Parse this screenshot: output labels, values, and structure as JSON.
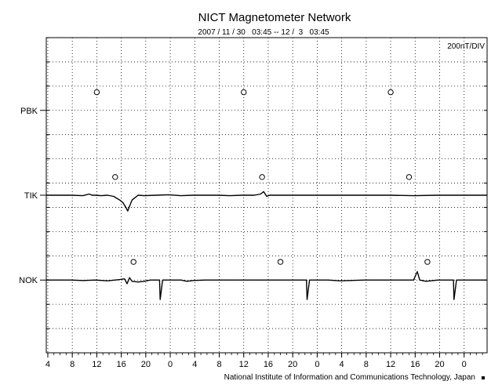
{
  "chart_data": {
    "type": "line",
    "title": "NICT Magnetometer Network",
    "subtitle": "2007 / 11 / 30   03:45 -- 12 /  3   03:45",
    "scale_label": "200nT/DIV",
    "footer": "National Institute of Information and Communications Technology, Japan",
    "grid": true,
    "x_tick_labels": [
      "4",
      "8",
      "12",
      "16",
      "20",
      "0",
      "4",
      "8",
      "12",
      "16",
      "20",
      "0",
      "4",
      "8",
      "12",
      "16",
      "20",
      "0"
    ],
    "x_range_hours": [
      0,
      72
    ],
    "first_tick_offset_hours": 0.25,
    "y_range": [
      0,
      13
    ],
    "stations": [
      {
        "name": "PBK",
        "level": 10.0,
        "marker_hours": [
          8.25,
          32.25,
          56.25
        ],
        "marker_level": 10.75
      },
      {
        "name": "TIK",
        "level": 6.5,
        "marker_hours": [
          11.25,
          35.25,
          59.25
        ],
        "marker_level": 7.25
      },
      {
        "name": "NOK",
        "level": 3.0,
        "marker_hours": [
          14.25,
          38.25,
          62.25
        ],
        "marker_level": 3.75
      }
    ],
    "series": [
      {
        "station": "TIK",
        "x": [
          0,
          2,
          4,
          6,
          7,
          7.5,
          8,
          9,
          10,
          11,
          12,
          12.5,
          13,
          13.3,
          13.6,
          14,
          14.5,
          15,
          16,
          18,
          20,
          22,
          24,
          26,
          28,
          30,
          32,
          34,
          35,
          35.5,
          36,
          36.5,
          37,
          40,
          44,
          48,
          52,
          56,
          60,
          64,
          68,
          72
        ],
        "y": [
          6.5,
          6.5,
          6.5,
          6.48,
          6.55,
          6.5,
          6.5,
          6.48,
          6.5,
          6.45,
          6.3,
          6.2,
          6.0,
          5.85,
          6.05,
          6.3,
          6.4,
          6.5,
          6.48,
          6.5,
          6.52,
          6.48,
          6.5,
          6.5,
          6.5,
          6.48,
          6.5,
          6.5,
          6.55,
          6.65,
          6.45,
          6.5,
          6.5,
          6.5,
          6.5,
          6.5,
          6.5,
          6.5,
          6.48,
          6.5,
          6.5,
          6.5
        ]
      },
      {
        "station": "NOK",
        "x": [
          0,
          2,
          4,
          6,
          8,
          10,
          12,
          12.8,
          13.2,
          13.6,
          14,
          15,
          16,
          17,
          18,
          18.5,
          18.6,
          19,
          20,
          22,
          23,
          24,
          26,
          28,
          30,
          32,
          34,
          36,
          40,
          42,
          42.5,
          42.6,
          43,
          44,
          46,
          48,
          52,
          56,
          60,
          60.6,
          61,
          62,
          64,
          66,
          66.5,
          66.6,
          67,
          68,
          70,
          72
        ],
        "y": [
          3.0,
          3.0,
          3.0,
          2.98,
          3.0,
          2.97,
          3.02,
          3.05,
          2.85,
          3.1,
          2.95,
          2.92,
          2.95,
          3.0,
          3.0,
          3.0,
          2.2,
          3.0,
          3.0,
          3.0,
          2.95,
          2.98,
          3.0,
          3.0,
          3.0,
          3.0,
          3.0,
          3.0,
          3.0,
          3.0,
          3.0,
          2.2,
          3.0,
          3.0,
          3.0,
          2.97,
          3.0,
          3.0,
          3.0,
          3.35,
          3.0,
          2.95,
          3.0,
          3.0,
          3.0,
          2.2,
          3.0,
          3.0,
          3.0,
          3.0
        ]
      }
    ]
  }
}
